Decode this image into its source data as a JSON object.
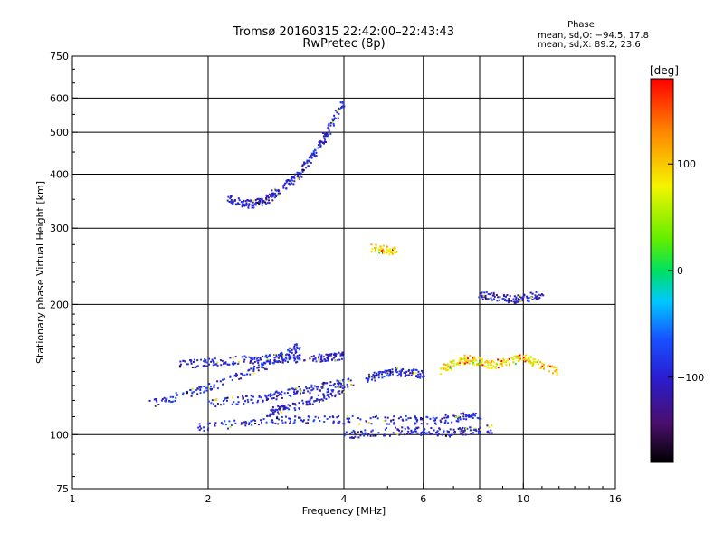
{
  "chart_data": {
    "type": "scatter",
    "title": "Tromsø 20160315 22:42:00–22:43:43",
    "subtitle": "RwPretec (8p)",
    "xlabel": "Frequency [MHz]",
    "ylabel": "Stationary phase Virtual Height [km]",
    "x_scale": "log",
    "y_scale": "log",
    "xlim": [
      1,
      16
    ],
    "ylim": [
      75,
      750
    ],
    "x_ticks": [
      1,
      2,
      4,
      6,
      8,
      10,
      16
    ],
    "y_ticks": [
      75,
      100,
      200,
      300,
      400,
      500,
      600,
      750
    ],
    "x_tick_labels": [
      "1",
      "2",
      "4",
      "6",
      "8",
      "10",
      "16"
    ],
    "y_tick_labels": [
      "75",
      "100",
      "200",
      "300",
      "400",
      "500",
      "600",
      "750"
    ],
    "grid": true,
    "grid_x": [
      2,
      4,
      6,
      8,
      10
    ],
    "grid_y": [
      100,
      200,
      300,
      400,
      500,
      600
    ],
    "colorbar": {
      "label": "[deg]",
      "range": [
        -180,
        180
      ],
      "ticks": [
        100,
        0,
        -100
      ],
      "tick_labels": [
        "100",
        "0",
        "−100"
      ]
    },
    "phase_legend": {
      "title": "Phase",
      "lines": [
        "mean, sd,O:  −94.5, 17.8",
        "mean, sd,X:  89.2, 23.6"
      ]
    },
    "traces": [
      {
        "x": [
          2.2,
          2.5,
          2.8
        ],
        "y": [
          350,
          340,
          355
        ],
        "phase": -100
      },
      {
        "x": [
          2.8,
          3.2,
          3.6,
          4.0
        ],
        "y": [
          360,
          400,
          480,
          590
        ],
        "phase": -95
      },
      {
        "x": [
          1.5,
          2.0,
          2.7,
          3.2
        ],
        "y": [
          118,
          128,
          145,
          160
        ],
        "phase": -90
      },
      {
        "x": [
          1.7,
          2.2,
          2.8,
          3.5,
          4.0
        ],
        "y": [
          145,
          148,
          150,
          150,
          152
        ],
        "phase": -100
      },
      {
        "x": [
          2.0,
          2.7,
          3.4,
          4.2
        ],
        "y": [
          118,
          122,
          128,
          132
        ],
        "phase": -95
      },
      {
        "x": [
          2.7,
          3.3,
          4.0
        ],
        "y": [
          112,
          118,
          128
        ],
        "phase": -100
      },
      {
        "x": [
          1.9,
          3.0,
          4.5,
          6.5,
          8.0
        ],
        "y": [
          104,
          108,
          108,
          108,
          111
        ],
        "phase": -95
      },
      {
        "x": [
          4.0,
          5.5,
          7.0,
          8.5
        ],
        "y": [
          100,
          102,
          101,
          103
        ],
        "phase": -100
      },
      {
        "x": [
          4.5,
          5.2,
          6.0
        ],
        "y": [
          135,
          140,
          138
        ],
        "phase": -90
      },
      {
        "x": [
          4.6,
          5.2
        ],
        "y": [
          270,
          265
        ],
        "phase": 95
      },
      {
        "x": [
          6.5,
          7.5,
          8.5,
          10.0,
          12.0
        ],
        "y": [
          140,
          150,
          145,
          150,
          140
        ],
        "phase": 90
      },
      {
        "x": [
          8.0,
          9.5,
          11.0
        ],
        "y": [
          210,
          205,
          210
        ],
        "phase": -100
      }
    ]
  }
}
